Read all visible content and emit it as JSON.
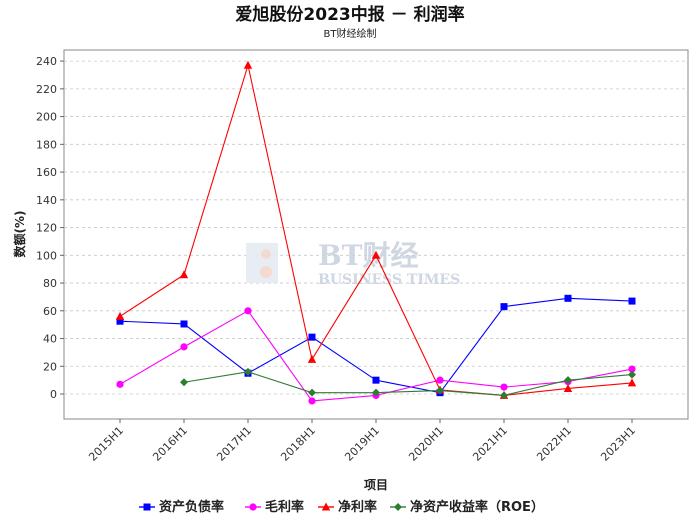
{
  "chart_data": {
    "type": "line",
    "title": "爱旭股份2023中报 － 利润率",
    "subtitle": "BT财经绘制",
    "xlabel": "项目",
    "ylabel": "数额(%)",
    "ylim": [
      -18,
      248
    ],
    "yticks": [
      0,
      20,
      40,
      60,
      80,
      100,
      120,
      140,
      160,
      180,
      200,
      220,
      240
    ],
    "grid": true,
    "legend_position": "bottom",
    "categories": [
      "2015H1",
      "2016H1",
      "2017H1",
      "2018H1",
      "2019H1",
      "2020H1",
      "2021H1",
      "2022H1",
      "2023H1"
    ],
    "series": [
      {
        "name": "资产负债率",
        "color": "#0000ff",
        "marker": "square",
        "values": [
          52.5,
          50.5,
          15,
          41,
          10,
          1,
          63,
          69,
          67
        ]
      },
      {
        "name": "毛利率",
        "color": "#ff00ff",
        "marker": "circle",
        "values": [
          7,
          34,
          60,
          -5,
          -1,
          10,
          5,
          9,
          18
        ]
      },
      {
        "name": "净利率",
        "color": "#ff0000",
        "marker": "triangle",
        "values": [
          56,
          86,
          237,
          25,
          100,
          3,
          -1,
          4,
          8
        ]
      },
      {
        "name": "净资产收益率（ROE）",
        "color": "#2e7d32",
        "marker": "diamond",
        "values": [
          null,
          8.5,
          16,
          1,
          1,
          2.5,
          -1,
          10,
          14
        ]
      }
    ]
  },
  "watermark": {
    "brand": "BT财经",
    "sub": "BUSINESS TIMES"
  }
}
